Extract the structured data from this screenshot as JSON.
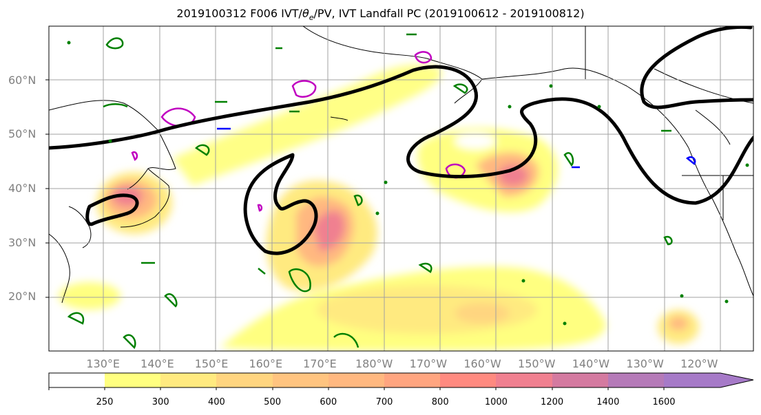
{
  "title": {
    "prefix": "2019100312 F006 IVT/",
    "theta": "θ",
    "theta_sub": "e",
    "suffix": "/PV, IVT Landfall PC (2019100612 - 2019100812)"
  },
  "map": {
    "lat_labels": [
      "60°N",
      "50°N",
      "40°N",
      "30°N",
      "20°N"
    ],
    "lon_labels": [
      "130°E",
      "140°E",
      "150°E",
      "160°E",
      "170°E",
      "180°W",
      "170°W",
      "160°W",
      "150°W",
      "140°W",
      "130°W",
      "120°W"
    ],
    "lat_values": [
      60,
      50,
      40,
      30,
      20
    ],
    "lon_values": [
      130,
      140,
      150,
      160,
      170,
      180,
      190,
      200,
      210,
      220,
      230,
      240
    ],
    "extent": {
      "lon_min": 120,
      "lon_max": 250,
      "lat_min": 10,
      "lat_max": 70
    },
    "contour_colors": {
      "theta_e": "#000000",
      "pv_positive": "#008000",
      "pv_alt": "#c000c0",
      "pv_negative": "#0000ff"
    }
  },
  "colorbar": {
    "levels": [
      "250",
      "300",
      "400",
      "500",
      "600",
      "700",
      "800",
      "1000",
      "1200",
      "1400",
      "1600"
    ],
    "colors": [
      "#ffffff",
      "#ffff80",
      "#ffea80",
      "#ffd580",
      "#ffc480",
      "#ffb880",
      "#ffa580",
      "#ff8a80",
      "#f08090",
      "#d47aa0",
      "#b57ab8",
      "#a67ac8"
    ]
  }
}
